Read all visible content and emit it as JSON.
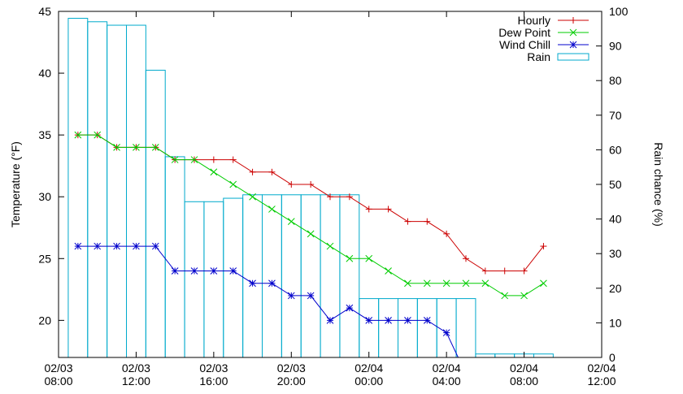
{
  "chart_data": {
    "type": "line",
    "title": "",
    "xlabel": "",
    "ylabel_left": "Temperature (°F)",
    "ylabel_right": "Rain chance (%)",
    "y_left_range": [
      17,
      45
    ],
    "y_right_range": [
      0,
      100
    ],
    "x_range_hours": [
      0,
      28
    ],
    "x_ticks": [
      {
        "h": 0,
        "line1": "02/03",
        "line2": "08:00"
      },
      {
        "h": 4,
        "line1": "02/03",
        "line2": "12:00"
      },
      {
        "h": 8,
        "line1": "02/03",
        "line2": "16:00"
      },
      {
        "h": 12,
        "line1": "02/03",
        "line2": "20:00"
      },
      {
        "h": 16,
        "line1": "02/04",
        "line2": "00:00"
      },
      {
        "h": 20,
        "line1": "02/04",
        "line2": "04:00"
      },
      {
        "h": 24,
        "line1": "02/04",
        "line2": "08:00"
      },
      {
        "h": 28,
        "line1": "02/04",
        "line2": "12:00"
      }
    ],
    "y_left_ticks": [
      20,
      25,
      30,
      35,
      40,
      45
    ],
    "y_right_ticks": [
      0,
      10,
      20,
      30,
      40,
      50,
      60,
      70,
      80,
      90,
      100
    ],
    "legend_position": "top-right",
    "series": [
      {
        "name": "Hourly",
        "color": "#cc0000",
        "marker": "plus",
        "x": [
          1,
          2,
          3,
          4,
          5,
          6,
          7,
          8,
          9,
          10,
          11,
          12,
          13,
          14,
          15,
          16,
          17,
          18,
          19,
          20,
          21,
          22,
          23,
          24,
          25
        ],
        "y": [
          35,
          35,
          34,
          34,
          34,
          33,
          33,
          33,
          33,
          32,
          32,
          31,
          31,
          30,
          30,
          29,
          29,
          28,
          28,
          27,
          25,
          24,
          24,
          24,
          26
        ]
      },
      {
        "name": "Dew Point",
        "color": "#00cc00",
        "marker": "x",
        "x": [
          1,
          2,
          3,
          4,
          5,
          6,
          7,
          8,
          9,
          10,
          11,
          12,
          13,
          14,
          15,
          16,
          17,
          18,
          19,
          20,
          21,
          22,
          23,
          24,
          25
        ],
        "y": [
          35,
          35,
          34,
          34,
          34,
          33,
          33,
          32,
          31,
          30,
          29,
          28,
          27,
          26,
          25,
          25,
          24,
          23,
          23,
          23,
          23,
          23,
          22,
          22,
          23
        ]
      },
      {
        "name": "Wind Chill",
        "color": "#0000cc",
        "marker": "star",
        "x": [
          1,
          2,
          3,
          4,
          5,
          6,
          7,
          8,
          9,
          10,
          11,
          12,
          13,
          14,
          15,
          16,
          17,
          18,
          19,
          20
        ],
        "y": [
          26,
          26,
          26,
          26,
          26,
          24,
          24,
          24,
          24,
          23,
          23,
          22,
          22,
          20,
          21,
          20,
          20,
          20,
          20,
          19
        ],
        "end_x": 20.6,
        "end_y": 17
      }
    ],
    "rain": {
      "name": "Rain",
      "color": "#00aacc",
      "bars": [
        {
          "start": 0.5,
          "end": 1.5,
          "value": 98
        },
        {
          "start": 1.5,
          "end": 2.5,
          "value": 97
        },
        {
          "start": 2.5,
          "end": 3.5,
          "value": 96
        },
        {
          "start": 3.5,
          "end": 4.5,
          "value": 96
        },
        {
          "start": 4.5,
          "end": 5.5,
          "value": 83
        },
        {
          "start": 5.5,
          "end": 6.5,
          "value": 58
        },
        {
          "start": 6.5,
          "end": 7.5,
          "value": 45
        },
        {
          "start": 7.5,
          "end": 8.5,
          "value": 45
        },
        {
          "start": 8.5,
          "end": 9.5,
          "value": 46
        },
        {
          "start": 9.5,
          "end": 10.5,
          "value": 47
        },
        {
          "start": 10.5,
          "end": 11.5,
          "value": 47
        },
        {
          "start": 11.5,
          "end": 12.5,
          "value": 47
        },
        {
          "start": 12.5,
          "end": 13.5,
          "value": 47
        },
        {
          "start": 13.5,
          "end": 14.5,
          "value": 47
        },
        {
          "start": 14.5,
          "end": 15.5,
          "value": 47
        },
        {
          "start": 15.5,
          "end": 16.5,
          "value": 17
        },
        {
          "start": 16.5,
          "end": 17.5,
          "value": 17
        },
        {
          "start": 17.5,
          "end": 18.5,
          "value": 17
        },
        {
          "start": 18.5,
          "end": 19.5,
          "value": 17
        },
        {
          "start": 19.5,
          "end": 20.5,
          "value": 17
        },
        {
          "start": 20.5,
          "end": 21.5,
          "value": 17
        },
        {
          "start": 21.5,
          "end": 22.5,
          "value": 1
        },
        {
          "start": 22.5,
          "end": 23.5,
          "value": 1
        },
        {
          "start": 23.5,
          "end": 24.5,
          "value": 1
        },
        {
          "start": 24.5,
          "end": 25.5,
          "value": 1
        }
      ]
    }
  }
}
